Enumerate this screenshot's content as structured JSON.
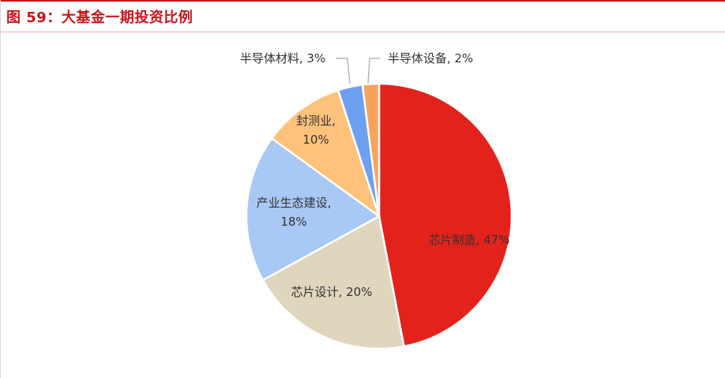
{
  "figure": {
    "title": "图 59：大基金一期投资比例"
  },
  "chart_data": {
    "type": "pie",
    "title": "",
    "slices": [
      {
        "label": "芯片制造, 47%",
        "name": "芯片制造",
        "value": 47,
        "color": "#e3221b"
      },
      {
        "label": "芯片设计, 20%",
        "name": "芯片设计",
        "value": 20,
        "color": "#e0d6be"
      },
      {
        "label": "产业生态建设, 18%",
        "name": "产业生态建设",
        "value": 18,
        "color": "#a8c8f5"
      },
      {
        "label": "封测业, 10%",
        "name": "封测业",
        "value": 10,
        "color": "#fec27a"
      },
      {
        "label": "半导体材料, 3%",
        "name": "半导体材料",
        "value": 3,
        "color": "#6ea0f0"
      },
      {
        "label": "半导体设备, 2%",
        "name": "半导体设备",
        "value": 2,
        "color": "#f7a35c"
      }
    ]
  }
}
